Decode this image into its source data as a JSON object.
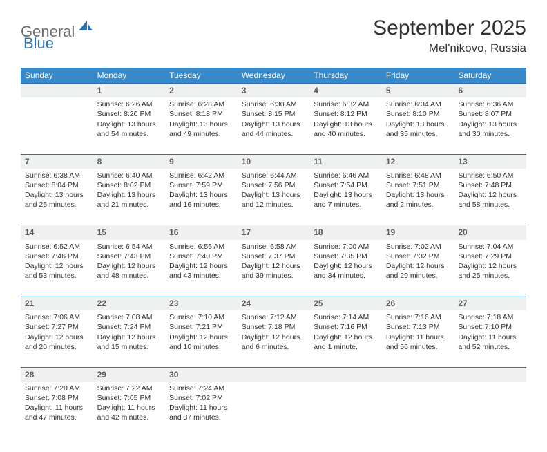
{
  "logo": {
    "part1": "General",
    "part2": "Blue"
  },
  "title": "September 2025",
  "location": "Mel'nikovo, Russia",
  "colors": {
    "header_bg": "#3789ca",
    "header_text": "#ffffff",
    "daynum_bg": "#eff0f0",
    "daynum_border": "#2a72b5",
    "body_text": "#323232",
    "logo_gray": "#6b6b6b",
    "logo_blue": "#2a72b5"
  },
  "weekdays": [
    "Sunday",
    "Monday",
    "Tuesday",
    "Wednesday",
    "Thursday",
    "Friday",
    "Saturday"
  ],
  "weeks": [
    {
      "nums": [
        "",
        "1",
        "2",
        "3",
        "4",
        "5",
        "6"
      ],
      "cells": [
        null,
        {
          "sr": "Sunrise: 6:26 AM",
          "ss": "Sunset: 8:20 PM",
          "d1": "Daylight: 13 hours",
          "d2": "and 54 minutes."
        },
        {
          "sr": "Sunrise: 6:28 AM",
          "ss": "Sunset: 8:18 PM",
          "d1": "Daylight: 13 hours",
          "d2": "and 49 minutes."
        },
        {
          "sr": "Sunrise: 6:30 AM",
          "ss": "Sunset: 8:15 PM",
          "d1": "Daylight: 13 hours",
          "d2": "and 44 minutes."
        },
        {
          "sr": "Sunrise: 6:32 AM",
          "ss": "Sunset: 8:12 PM",
          "d1": "Daylight: 13 hours",
          "d2": "and 40 minutes."
        },
        {
          "sr": "Sunrise: 6:34 AM",
          "ss": "Sunset: 8:10 PM",
          "d1": "Daylight: 13 hours",
          "d2": "and 35 minutes."
        },
        {
          "sr": "Sunrise: 6:36 AM",
          "ss": "Sunset: 8:07 PM",
          "d1": "Daylight: 13 hours",
          "d2": "and 30 minutes."
        }
      ]
    },
    {
      "nums": [
        "7",
        "8",
        "9",
        "10",
        "11",
        "12",
        "13"
      ],
      "cells": [
        {
          "sr": "Sunrise: 6:38 AM",
          "ss": "Sunset: 8:04 PM",
          "d1": "Daylight: 13 hours",
          "d2": "and 26 minutes."
        },
        {
          "sr": "Sunrise: 6:40 AM",
          "ss": "Sunset: 8:02 PM",
          "d1": "Daylight: 13 hours",
          "d2": "and 21 minutes."
        },
        {
          "sr": "Sunrise: 6:42 AM",
          "ss": "Sunset: 7:59 PM",
          "d1": "Daylight: 13 hours",
          "d2": "and 16 minutes."
        },
        {
          "sr": "Sunrise: 6:44 AM",
          "ss": "Sunset: 7:56 PM",
          "d1": "Daylight: 13 hours",
          "d2": "and 12 minutes."
        },
        {
          "sr": "Sunrise: 6:46 AM",
          "ss": "Sunset: 7:54 PM",
          "d1": "Daylight: 13 hours",
          "d2": "and 7 minutes."
        },
        {
          "sr": "Sunrise: 6:48 AM",
          "ss": "Sunset: 7:51 PM",
          "d1": "Daylight: 13 hours",
          "d2": "and 2 minutes."
        },
        {
          "sr": "Sunrise: 6:50 AM",
          "ss": "Sunset: 7:48 PM",
          "d1": "Daylight: 12 hours",
          "d2": "and 58 minutes."
        }
      ]
    },
    {
      "nums": [
        "14",
        "15",
        "16",
        "17",
        "18",
        "19",
        "20"
      ],
      "cells": [
        {
          "sr": "Sunrise: 6:52 AM",
          "ss": "Sunset: 7:46 PM",
          "d1": "Daylight: 12 hours",
          "d2": "and 53 minutes."
        },
        {
          "sr": "Sunrise: 6:54 AM",
          "ss": "Sunset: 7:43 PM",
          "d1": "Daylight: 12 hours",
          "d2": "and 48 minutes."
        },
        {
          "sr": "Sunrise: 6:56 AM",
          "ss": "Sunset: 7:40 PM",
          "d1": "Daylight: 12 hours",
          "d2": "and 43 minutes."
        },
        {
          "sr": "Sunrise: 6:58 AM",
          "ss": "Sunset: 7:37 PM",
          "d1": "Daylight: 12 hours",
          "d2": "and 39 minutes."
        },
        {
          "sr": "Sunrise: 7:00 AM",
          "ss": "Sunset: 7:35 PM",
          "d1": "Daylight: 12 hours",
          "d2": "and 34 minutes."
        },
        {
          "sr": "Sunrise: 7:02 AM",
          "ss": "Sunset: 7:32 PM",
          "d1": "Daylight: 12 hours",
          "d2": "and 29 minutes."
        },
        {
          "sr": "Sunrise: 7:04 AM",
          "ss": "Sunset: 7:29 PM",
          "d1": "Daylight: 12 hours",
          "d2": "and 25 minutes."
        }
      ]
    },
    {
      "nums": [
        "21",
        "22",
        "23",
        "24",
        "25",
        "26",
        "27"
      ],
      "cells": [
        {
          "sr": "Sunrise: 7:06 AM",
          "ss": "Sunset: 7:27 PM",
          "d1": "Daylight: 12 hours",
          "d2": "and 20 minutes."
        },
        {
          "sr": "Sunrise: 7:08 AM",
          "ss": "Sunset: 7:24 PM",
          "d1": "Daylight: 12 hours",
          "d2": "and 15 minutes."
        },
        {
          "sr": "Sunrise: 7:10 AM",
          "ss": "Sunset: 7:21 PM",
          "d1": "Daylight: 12 hours",
          "d2": "and 10 minutes."
        },
        {
          "sr": "Sunrise: 7:12 AM",
          "ss": "Sunset: 7:18 PM",
          "d1": "Daylight: 12 hours",
          "d2": "and 6 minutes."
        },
        {
          "sr": "Sunrise: 7:14 AM",
          "ss": "Sunset: 7:16 PM",
          "d1": "Daylight: 12 hours",
          "d2": "and 1 minute."
        },
        {
          "sr": "Sunrise: 7:16 AM",
          "ss": "Sunset: 7:13 PM",
          "d1": "Daylight: 11 hours",
          "d2": "and 56 minutes."
        },
        {
          "sr": "Sunrise: 7:18 AM",
          "ss": "Sunset: 7:10 PM",
          "d1": "Daylight: 11 hours",
          "d2": "and 52 minutes."
        }
      ]
    },
    {
      "nums": [
        "28",
        "29",
        "30",
        "",
        "",
        "",
        ""
      ],
      "cells": [
        {
          "sr": "Sunrise: 7:20 AM",
          "ss": "Sunset: 7:08 PM",
          "d1": "Daylight: 11 hours",
          "d2": "and 47 minutes."
        },
        {
          "sr": "Sunrise: 7:22 AM",
          "ss": "Sunset: 7:05 PM",
          "d1": "Daylight: 11 hours",
          "d2": "and 42 minutes."
        },
        {
          "sr": "Sunrise: 7:24 AM",
          "ss": "Sunset: 7:02 PM",
          "d1": "Daylight: 11 hours",
          "d2": "and 37 minutes."
        },
        null,
        null,
        null,
        null
      ]
    }
  ]
}
